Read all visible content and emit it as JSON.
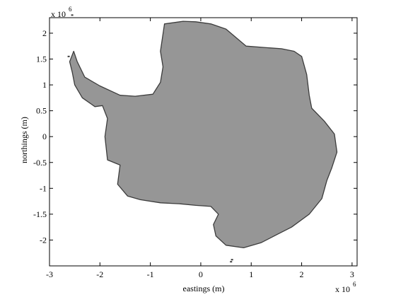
{
  "chart_data": {
    "type": "map",
    "xlabel": "eastings (m)",
    "ylabel": "northings (m)",
    "x_multiplier": "x 10",
    "x_exponent": "6",
    "y_multiplier": "x 10",
    "y_exponent": "6",
    "xlim": [
      -3,
      3.1
    ],
    "ylim": [
      -2.5,
      2.3
    ],
    "x_ticks": [
      "-3",
      "-2",
      "-1",
      "0",
      "1",
      "2",
      "3"
    ],
    "x_tick_values": [
      -3,
      -2,
      -1,
      0,
      1,
      2,
      3
    ],
    "y_ticks": [
      "2",
      "1.5",
      "1",
      "0.5",
      "0",
      "-0.5",
      "-1",
      "-1.5",
      "-2"
    ],
    "y_tick_values": [
      2,
      1.5,
      1,
      0.5,
      0,
      -0.5,
      -1,
      -1.5,
      -2
    ],
    "units_scale": 1000000,
    "grid": false,
    "fill_color": "#969696",
    "outline_color": "#3c3c3c",
    "landmass_outline": [
      [
        -0.72,
        2.18
      ],
      [
        -0.35,
        2.23
      ],
      [
        -0.1,
        2.22
      ],
      [
        0.2,
        2.18
      ],
      [
        0.5,
        2.08
      ],
      [
        0.9,
        1.75
      ],
      [
        1.3,
        1.72
      ],
      [
        1.6,
        1.7
      ],
      [
        1.85,
        1.65
      ],
      [
        2.0,
        1.55
      ],
      [
        2.1,
        1.2
      ],
      [
        2.15,
        0.8
      ],
      [
        2.2,
        0.55
      ],
      [
        2.45,
        0.3
      ],
      [
        2.65,
        0.05
      ],
      [
        2.7,
        -0.3
      ],
      [
        2.6,
        -0.6
      ],
      [
        2.5,
        -0.85
      ],
      [
        2.4,
        -1.2
      ],
      [
        2.15,
        -1.5
      ],
      [
        1.8,
        -1.75
      ],
      [
        1.5,
        -1.9
      ],
      [
        1.2,
        -2.05
      ],
      [
        0.85,
        -2.15
      ],
      [
        0.5,
        -2.1
      ],
      [
        0.3,
        -1.92
      ],
      [
        0.25,
        -1.7
      ],
      [
        0.35,
        -1.5
      ],
      [
        0.2,
        -1.35
      ],
      [
        -0.1,
        -1.33
      ],
      [
        -0.4,
        -1.3
      ],
      [
        -0.8,
        -1.28
      ],
      [
        -1.2,
        -1.22
      ],
      [
        -1.45,
        -1.15
      ],
      [
        -1.65,
        -0.92
      ],
      [
        -1.6,
        -0.55
      ],
      [
        -1.85,
        -0.45
      ],
      [
        -1.9,
        0.0
      ],
      [
        -1.85,
        0.35
      ],
      [
        -1.95,
        0.6
      ],
      [
        -2.1,
        0.58
      ],
      [
        -2.35,
        0.75
      ],
      [
        -2.5,
        1.0
      ],
      [
        -2.55,
        1.25
      ],
      [
        -2.6,
        1.45
      ],
      [
        -2.52,
        1.65
      ],
      [
        -2.45,
        1.45
      ],
      [
        -2.3,
        1.15
      ],
      [
        -2.0,
        0.98
      ],
      [
        -1.6,
        0.8
      ],
      [
        -1.3,
        0.78
      ],
      [
        -0.95,
        0.82
      ],
      [
        -0.8,
        1.05
      ],
      [
        -0.75,
        1.35
      ],
      [
        -0.8,
        1.65
      ],
      [
        -0.72,
        2.18
      ]
    ],
    "island_points": [
      [
        -2.55,
        2.35
      ],
      [
        -2.62,
        1.55
      ],
      [
        0.62,
        -2.38
      ],
      [
        0.6,
        -2.42
      ]
    ]
  }
}
